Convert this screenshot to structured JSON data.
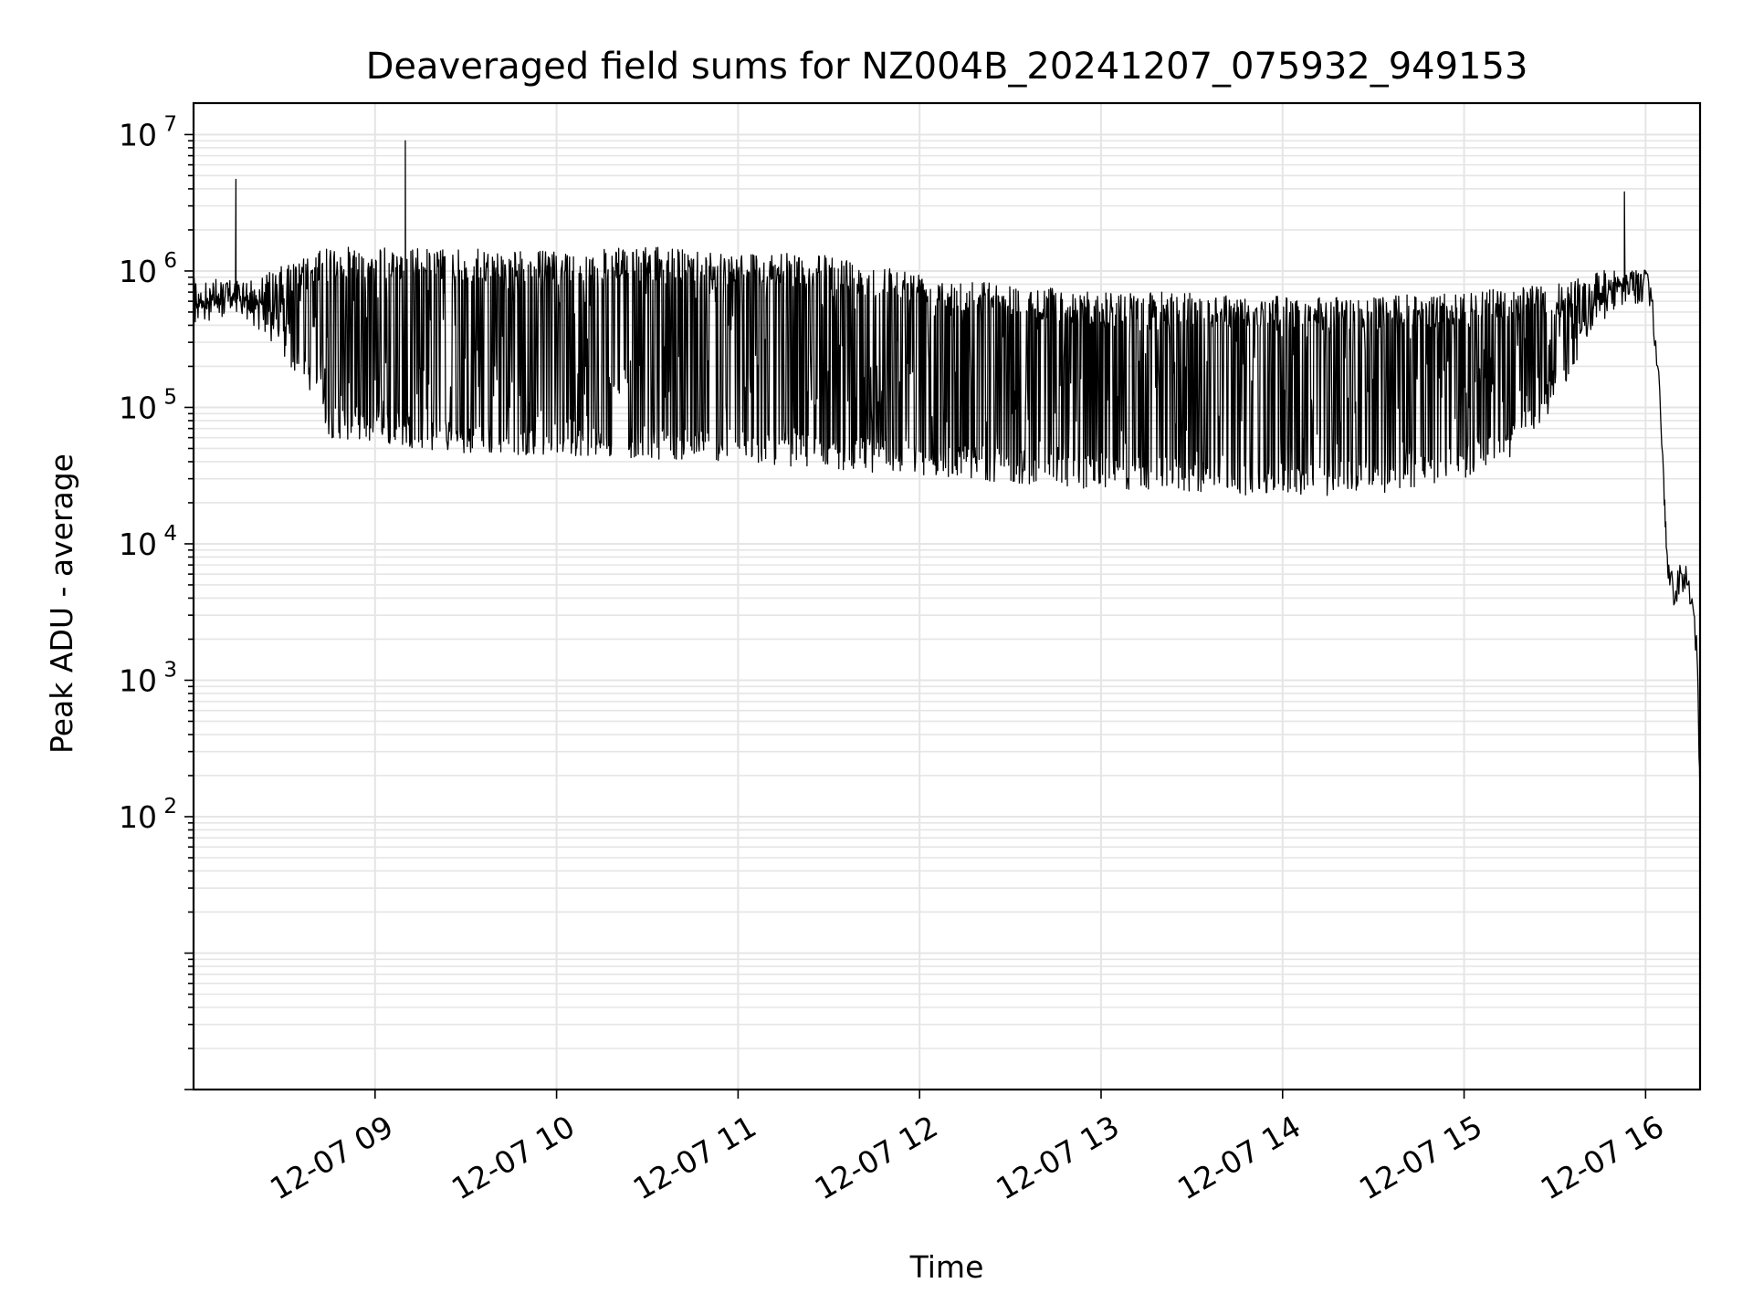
{
  "chart_data": {
    "type": "line",
    "title": "Deaveraged field sums for NZ004B_20241207_075932_949153",
    "xlabel": "Time",
    "ylabel": "Peak ADU - average",
    "yscale": "log",
    "ylim": [
      1,
      17000000
    ],
    "xlim": [
      "2024-12-07 08:00",
      "2024-12-07 16:18"
    ],
    "grid": true,
    "x_tick_labels": [
      "12-07 09",
      "12-07 10",
      "12-07 11",
      "12-07 12",
      "12-07 13",
      "12-07 14",
      "12-07 15",
      "12-07 16"
    ],
    "y_tick_labels": [
      {
        "base": "10",
        "exp": "2"
      },
      {
        "base": "10",
        "exp": "3"
      },
      {
        "base": "10",
        "exp": "4"
      },
      {
        "base": "10",
        "exp": "5"
      },
      {
        "base": "10",
        "exp": "6"
      },
      {
        "base": "10",
        "exp": "7"
      }
    ],
    "line_color": "#000000",
    "series": [
      {
        "envelope_upper": [
          [
            "2024-12-07 08:00",
            700000
          ],
          [
            "2024-12-07 08:10",
            800000
          ],
          [
            "2024-12-07 08:20",
            900000
          ],
          [
            "2024-12-07 08:30",
            1100000
          ],
          [
            "2024-12-07 08:45",
            1500000
          ],
          [
            "2024-12-07 09:00",
            1500000
          ],
          [
            "2024-12-07 09:30",
            1450000
          ],
          [
            "2024-12-07 10:00",
            1400000
          ],
          [
            "2024-12-07 10:30",
            1500000
          ],
          [
            "2024-12-07 11:00",
            1400000
          ],
          [
            "2024-12-07 11:30",
            1300000
          ],
          [
            "2024-12-07 12:00",
            1000000
          ],
          [
            "2024-12-07 12:30",
            800000
          ],
          [
            "2024-12-07 13:00",
            700000
          ],
          [
            "2024-12-07 13:30",
            700000
          ],
          [
            "2024-12-07 14:00",
            650000
          ],
          [
            "2024-12-07 14:30",
            650000
          ],
          [
            "2024-12-07 15:00",
            700000
          ],
          [
            "2024-12-07 15:30",
            800000
          ],
          [
            "2024-12-07 15:45",
            1000000
          ],
          [
            "2024-12-07 16:00",
            1100000
          ]
        ],
        "envelope_lower": [
          [
            "2024-12-07 08:00",
            500000
          ],
          [
            "2024-12-07 08:15",
            500000
          ],
          [
            "2024-12-07 08:25",
            300000
          ],
          [
            "2024-12-07 08:40",
            120000
          ],
          [
            "2024-12-07 08:45",
            60000
          ],
          [
            "2024-12-07 09:00",
            55000
          ],
          [
            "2024-12-07 09:30",
            45000
          ],
          [
            "2024-12-07 10:00",
            45000
          ],
          [
            "2024-12-07 10:30",
            42000
          ],
          [
            "2024-12-07 11:00",
            40000
          ],
          [
            "2024-12-07 11:30",
            35000
          ],
          [
            "2024-12-07 12:00",
            32000
          ],
          [
            "2024-12-07 12:30",
            28000
          ],
          [
            "2024-12-07 13:00",
            25000
          ],
          [
            "2024-12-07 13:30",
            24000
          ],
          [
            "2024-12-07 14:00",
            22000
          ],
          [
            "2024-12-07 14:30",
            23000
          ],
          [
            "2024-12-07 15:00",
            30000
          ],
          [
            "2024-12-07 15:15",
            40000
          ],
          [
            "2024-12-07 15:30",
            100000
          ],
          [
            "2024-12-07 15:40",
            300000
          ],
          [
            "2024-12-07 15:50",
            500000
          ],
          [
            "2024-12-07 16:00",
            600000
          ]
        ],
        "spikes": [
          [
            "2024-12-07 08:14",
            4700000
          ],
          [
            "2024-12-07 09:10",
            9000000
          ],
          [
            "2024-12-07 15:53",
            3800000
          ]
        ],
        "tail": [
          [
            "2024-12-07 16:00",
            1000000
          ],
          [
            "2024-12-07 16:02",
            600000
          ],
          [
            "2024-12-07 16:04",
            200000
          ],
          [
            "2024-12-07 16:06",
            30000
          ],
          [
            "2024-12-07 16:07",
            9000
          ],
          [
            "2024-12-07 16:08",
            5000
          ],
          [
            "2024-12-07 16:10",
            4500
          ],
          [
            "2024-12-07 16:12",
            6000
          ],
          [
            "2024-12-07 16:14",
            5000
          ],
          [
            "2024-12-07 16:16",
            3000
          ],
          [
            "2024-12-07 16:17",
            1500
          ],
          [
            "2024-12-07 16:18",
            130
          ]
        ]
      }
    ]
  }
}
